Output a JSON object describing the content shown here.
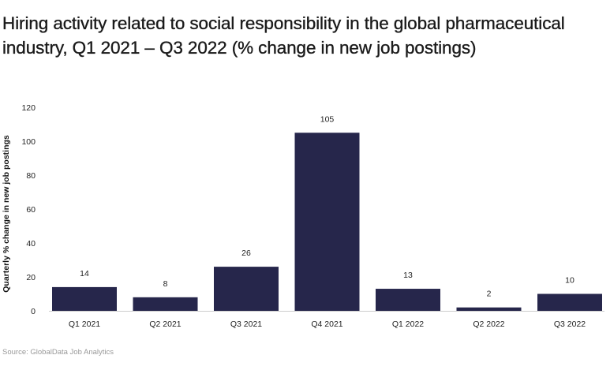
{
  "title": "Hiring activity related to social responsibility in the global pharmaceutical industry, Q1 2021 – Q3 2022 (% change in new job postings)",
  "source": "Source: GlobalData Job Analytics",
  "colors": {
    "bar": "#26264b",
    "axis": "#cccccc"
  },
  "chart_data": {
    "type": "bar",
    "title": "Hiring activity related to social responsibility in the global pharmaceutical industry, Q1 2021 – Q3 2022 (% change in new job postings)",
    "xlabel": "",
    "ylabel": "Quarterly % change in new job postings",
    "categories": [
      "Q1 2021",
      "Q2 2021",
      "Q3 2021",
      "Q4 2021",
      "Q1 2022",
      "Q2 2022",
      "Q3 2022"
    ],
    "values": [
      14,
      8,
      26,
      105,
      13,
      2,
      10
    ],
    "ylim": [
      0,
      120
    ],
    "yticks": [
      0,
      20,
      40,
      60,
      80,
      100,
      120
    ],
    "grid": false,
    "data_labels": true
  }
}
